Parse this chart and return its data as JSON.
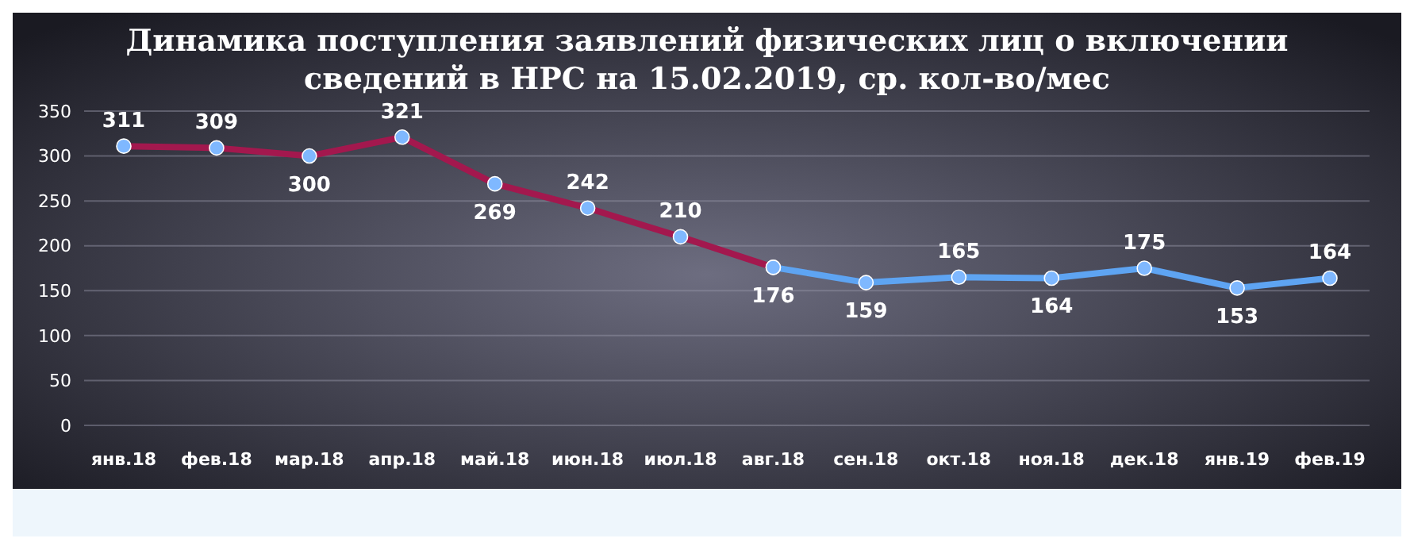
{
  "chart_data": {
    "type": "line",
    "title": "Динамика поступления заявлений физических лиц о включении сведений в НРС на 15.02.2019, ср. кол-во/мес",
    "categories": [
      "янв.18",
      "фев.18",
      "мар.18",
      "апр.18",
      "май.18",
      "июн.18",
      "июл.18",
      "авг.18",
      "сен.18",
      "окт.18",
      "ноя.18",
      "дек.18",
      "янв.19",
      "фев.19"
    ],
    "series": [
      {
        "color": "#a3184e",
        "values": [
          311,
          309,
          300,
          321,
          269,
          242,
          210,
          176,
          null,
          null,
          null,
          null,
          null,
          null
        ],
        "value_labels": [
          "311",
          "309",
          "300",
          "321",
          "269",
          "242",
          "210",
          "176",
          null,
          null,
          null,
          null,
          null,
          null
        ]
      },
      {
        "color": "#5ea4f2",
        "values": [
          null,
          null,
          null,
          null,
          null,
          null,
          null,
          176,
          159,
          165,
          164,
          175,
          153,
          164
        ],
        "value_labels": [
          null,
          null,
          null,
          null,
          null,
          null,
          null,
          null,
          "159",
          "165",
          "164",
          "175",
          "153",
          "164"
        ]
      }
    ],
    "ylim": [
      0,
      350
    ],
    "yticks": [
      0,
      50,
      100,
      150,
      200,
      250,
      300,
      350
    ],
    "grid": "y",
    "marker": "circle",
    "line_style": "solid"
  }
}
